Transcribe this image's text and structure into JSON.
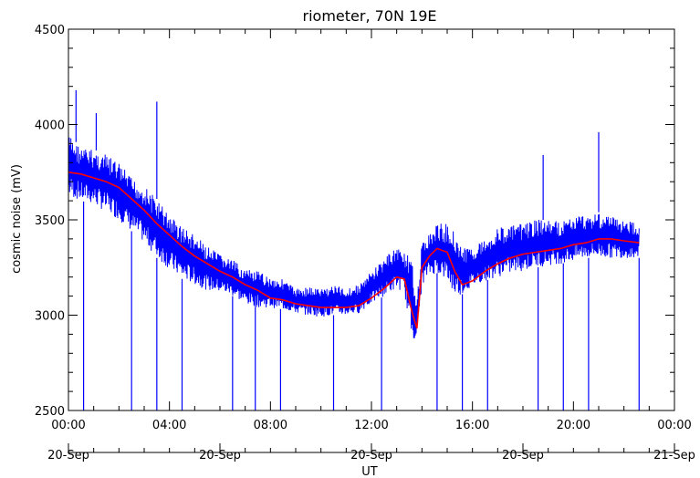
{
  "chart_data": {
    "type": "line",
    "title": "riometer, 70N 19E",
    "ylabel": "cosmic noise (mV)",
    "xlabel": "UT",
    "ylim": [
      2500,
      4500
    ],
    "xlim_hours": [
      0,
      24
    ],
    "yticks": [
      "2500",
      "3000",
      "3500",
      "4000",
      "4500"
    ],
    "xticks_time": [
      "00:00",
      "04:00",
      "08:00",
      "12:00",
      "16:00",
      "20:00",
      "00:00"
    ],
    "xticks_date": [
      "20-Sep",
      "20-Sep",
      "20-Sep",
      "20-Sep",
      "21-Sep"
    ],
    "colors": {
      "raw": "#0000ff",
      "smoothed": "#ff0000",
      "axes": "#000000"
    },
    "grid": false,
    "series": [
      {
        "key": "raw",
        "style": "noisy band with spikes",
        "x_hours": [
          0,
          0.5,
          1,
          1.5,
          2,
          2.5,
          3,
          3.5,
          4,
          4.5,
          5,
          5.5,
          6,
          6.5,
          7,
          7.5,
          8,
          8.5,
          9,
          9.5,
          10,
          10.5,
          11,
          11.5,
          12,
          12.5,
          13,
          13.3,
          13.6,
          13.8,
          14,
          14.3,
          14.6,
          15,
          15.3,
          15.6,
          16,
          16.5,
          17,
          17.5,
          18,
          18.5,
          19,
          19.5,
          20,
          20.5,
          21,
          21.5,
          22,
          22.6
        ],
        "upper": [
          3950,
          3880,
          3870,
          3840,
          3800,
          3720,
          3680,
          3610,
          3530,
          3470,
          3420,
          3360,
          3320,
          3290,
          3240,
          3230,
          3200,
          3190,
          3140,
          3150,
          3140,
          3160,
          3140,
          3160,
          3230,
          3300,
          3360,
          3340,
          3280,
          3100,
          3380,
          3430,
          3480,
          3480,
          3450,
          3350,
          3360,
          3400,
          3460,
          3470,
          3480,
          3500,
          3500,
          3490,
          3520,
          3530,
          3540,
          3520,
          3500,
          3480
        ],
        "lower": [
          3620,
          3600,
          3580,
          3540,
          3500,
          3440,
          3380,
          3300,
          3240,
          3190,
          3160,
          3130,
          3120,
          3100,
          3060,
          3040,
          3040,
          3030,
          3010,
          3000,
          2990,
          3000,
          3000,
          3010,
          3060,
          3100,
          3140,
          3120,
          2880,
          2870,
          3160,
          3210,
          3220,
          3180,
          3100,
          3110,
          3150,
          3180,
          3200,
          3220,
          3230,
          3250,
          3260,
          3270,
          3280,
          3300,
          3300,
          3300,
          3300,
          3300
        ],
        "spikes": [
          {
            "x": 0.3,
            "y": 4180
          },
          {
            "x": 0.6,
            "y": 2500
          },
          {
            "x": 1.1,
            "y": 4060
          },
          {
            "x": 2.5,
            "y": 2500
          },
          {
            "x": 3.5,
            "y": 2500
          },
          {
            "x": 4.5,
            "y": 2500
          },
          {
            "x": 6.5,
            "y": 2500
          },
          {
            "x": 7.4,
            "y": 2500
          },
          {
            "x": 8.4,
            "y": 2500
          },
          {
            "x": 10.5,
            "y": 2500
          },
          {
            "x": 12.4,
            "y": 2500
          },
          {
            "x": 14.6,
            "y": 2500
          },
          {
            "x": 15.6,
            "y": 2500
          },
          {
            "x": 16.6,
            "y": 2500
          },
          {
            "x": 18.6,
            "y": 2500
          },
          {
            "x": 19.6,
            "y": 2500
          },
          {
            "x": 20.6,
            "y": 2500
          },
          {
            "x": 22.6,
            "y": 2500
          },
          {
            "x": 3.5,
            "y": 4120
          },
          {
            "x": 18.8,
            "y": 3840
          },
          {
            "x": 21.0,
            "y": 3960
          }
        ]
      },
      {
        "key": "smoothed",
        "x_hours": [
          0,
          0.5,
          1,
          1.5,
          2,
          2.5,
          3,
          3.5,
          4,
          4.5,
          5,
          5.5,
          6,
          6.5,
          7,
          7.5,
          8,
          8.5,
          9,
          9.5,
          10,
          10.5,
          11,
          11.5,
          12,
          12.5,
          13,
          13.3,
          13.6,
          13.8,
          14,
          14.3,
          14.6,
          15,
          15.3,
          15.6,
          16,
          16.5,
          17,
          17.5,
          18,
          18.5,
          19,
          19.5,
          20,
          20.5,
          21,
          21.5,
          22,
          22.6
        ],
        "values": [
          3750,
          3740,
          3720,
          3700,
          3670,
          3610,
          3550,
          3480,
          3420,
          3360,
          3310,
          3270,
          3230,
          3200,
          3160,
          3130,
          3090,
          3080,
          3060,
          3050,
          3040,
          3040,
          3040,
          3050,
          3090,
          3140,
          3200,
          3190,
          3020,
          2930,
          3250,
          3310,
          3350,
          3330,
          3230,
          3160,
          3180,
          3230,
          3270,
          3300,
          3320,
          3330,
          3340,
          3350,
          3370,
          3380,
          3400,
          3400,
          3390,
          3380
        ]
      }
    ]
  }
}
